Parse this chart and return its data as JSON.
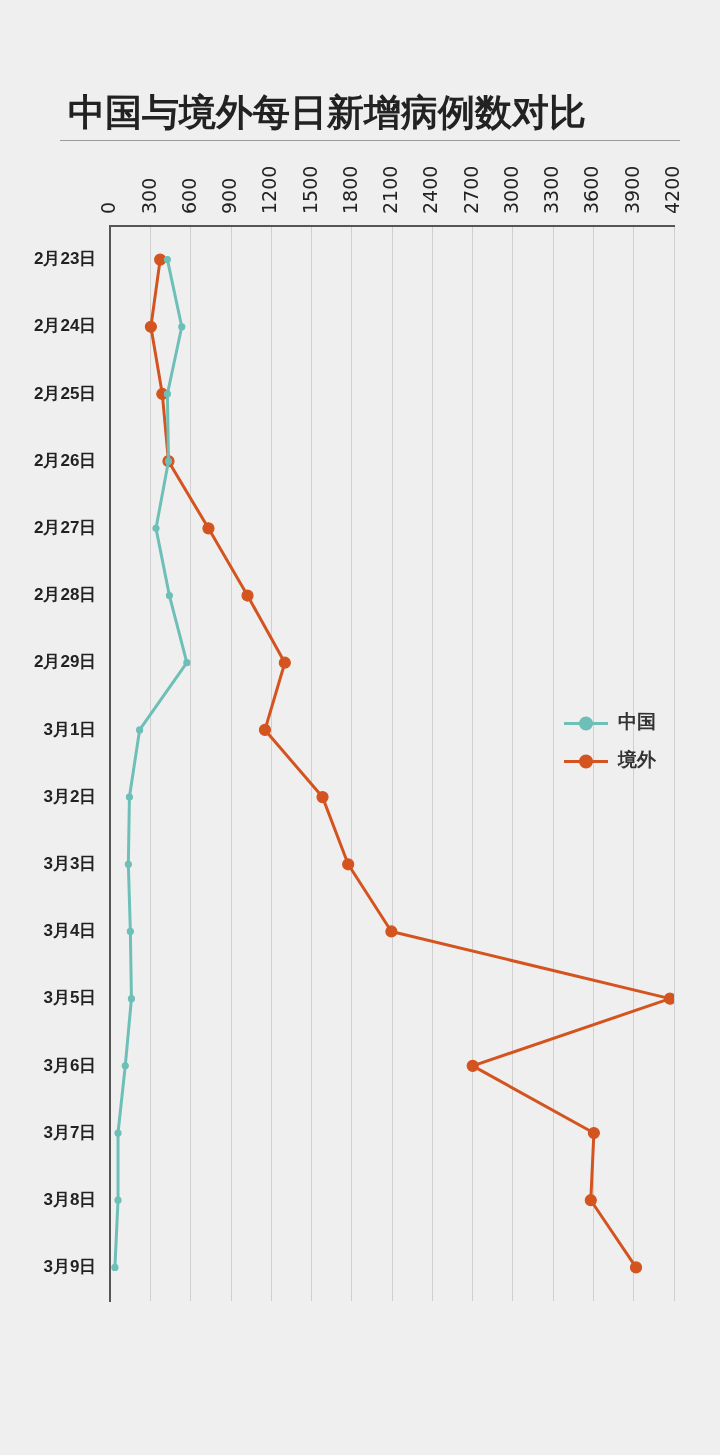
{
  "chart_data": {
    "type": "line",
    "orientation": "horizontal",
    "title": "中国与境外每日新增病例数对比",
    "categories": [
      "2月23日",
      "2月24日",
      "2月25日",
      "2月26日",
      "2月27日",
      "2月28日",
      "2月29日",
      "3月1日",
      "3月2日",
      "3月3日",
      "3月4日",
      "3月5日",
      "3月6日",
      "3月7日",
      "3月8日",
      "3月9日"
    ],
    "series": [
      {
        "name": "中国",
        "color": "#6dbfb8",
        "values": [
          425,
          532,
          425,
          433,
          340,
          440,
          570,
          218,
          142,
          134,
          149,
          157,
          111,
          57,
          57,
          34
        ]
      },
      {
        "name": "境外",
        "color": "#d4541f",
        "values": [
          371,
          302,
          387,
          433,
          731,
          1022,
          1300,
          1152,
          1581,
          1772,
          2094,
          4170,
          2700,
          3603,
          3580,
          3917
        ]
      }
    ],
    "xlim": [
      0,
      4200
    ],
    "xticks": [
      0,
      300,
      600,
      900,
      1200,
      1500,
      1800,
      2100,
      2400,
      2700,
      3000,
      3300,
      3600,
      3900,
      4200
    ],
    "grid": "x",
    "legend": "right",
    "marker": "circle",
    "line_style": "solid"
  }
}
